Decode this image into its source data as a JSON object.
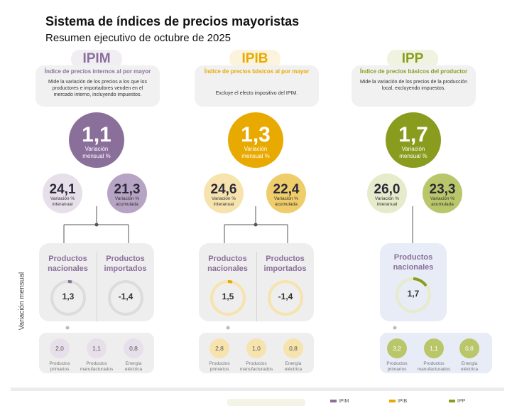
{
  "header": {
    "title": "Sistema de índices de precios mayoristas",
    "subtitle": "Resumen ejecutivo de octubre de 2025"
  },
  "side_label": "Variación mensual",
  "colors": {
    "ipim": "#8a6f9b",
    "ipim_light": "#e7dfea",
    "ipim_mid": "#b7a3c4",
    "ipib": "#e8a900",
    "ipib_light": "#f6e3ad",
    "ipib_mid": "#efcd6a",
    "ipp": "#8a9c1e",
    "ipp_light": "#e6ebcb",
    "ipp_mid": "#b9c76a"
  },
  "ipim": {
    "label": "IPIM",
    "heading": "Índice de precios internos al por mayor",
    "description": "Mide la variación de los precios a los que los productores e importadores venden en el mercado interno, incluyendo impuestos.",
    "monthly": "1,1",
    "monthly_label_1": "Variación",
    "monthly_label_2": "mensual %",
    "annual": "24,1",
    "annual_label_1": "Variación %",
    "annual_label_2": "interanual",
    "cumulative": "21,3",
    "cumulative_label_1": "Variación %",
    "cumulative_label_2": "acumulada",
    "national_title_1": "Productos",
    "national_title_2": "nacionales",
    "national_value": "1,3",
    "imported_title_1": "Productos",
    "imported_title_2": "importados",
    "imported_value": "-1,4",
    "breakdown": [
      {
        "value": "2,0",
        "label_1": "Productos",
        "label_2": "primarios"
      },
      {
        "value": "1,1",
        "label_1": "Productos",
        "label_2": "manufacturados"
      },
      {
        "value": "0,8",
        "label_1": "Energía",
        "label_2": "eléctrica"
      }
    ]
  },
  "ipib": {
    "label": "IPIB",
    "heading": "Índice de precios básicos al por mayor",
    "description": "Excluye el efecto impositivo del IPIM.",
    "monthly": "1,3",
    "monthly_label_1": "Variación",
    "monthly_label_2": "mensual %",
    "annual": "24,6",
    "annual_label_1": "Variación %",
    "annual_label_2": "interanual",
    "cumulative": "22,4",
    "cumulative_label_1": "Variación %",
    "cumulative_label_2": "acumulada",
    "national_title_1": "Productos",
    "national_title_2": "nacionales",
    "national_value": "1,5",
    "imported_title_1": "Productos",
    "imported_title_2": "importados",
    "imported_value": "-1,4",
    "breakdown": [
      {
        "value": "2,8",
        "label_1": "Productos",
        "label_2": "primarios"
      },
      {
        "value": "1,0",
        "label_1": "Productos",
        "label_2": "manufacturados"
      },
      {
        "value": "0,8",
        "label_1": "Energía",
        "label_2": "eléctrica"
      }
    ]
  },
  "ipp": {
    "label": "IPP",
    "heading": "Índice de precios básicos del productor",
    "description": "Mide la variación de los precios de la producción local, excluyendo impuestos.",
    "monthly": "1,7",
    "monthly_label_1": "Variación",
    "monthly_label_2": "mensual %",
    "annual": "26,0",
    "annual_label_1": "Variación %",
    "annual_label_2": "interanual",
    "cumulative": "23,3",
    "cumulative_label_1": "Variación %",
    "cumulative_label_2": "acumulada",
    "national_title_1": "Productos",
    "national_title_2": "nacionales",
    "national_value": "1,7",
    "breakdown": [
      {
        "value": "3,2",
        "label_1": "Productos",
        "label_2": "primarios"
      },
      {
        "value": "1,1",
        "label_1": "Productos",
        "label_2": "manufacturados"
      },
      {
        "value": "0,8",
        "label_1": "Energía",
        "label_2": "eléctrica"
      }
    ]
  },
  "legend": {
    "ipim": "IPIM",
    "ipib": "IPIB",
    "ipp": "IPP"
  }
}
